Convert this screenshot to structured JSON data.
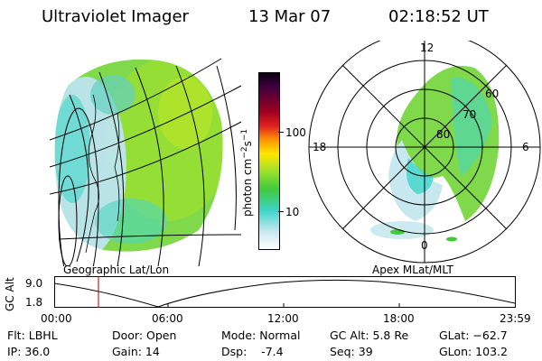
{
  "header": {
    "title": "Ultraviolet Imager",
    "date": "13 Mar 07",
    "time": "02:18:52 UT"
  },
  "left_panel": {
    "label": "Geographic Lat/Lon"
  },
  "colorbar": {
    "unit_text": "photon cm",
    "unit_exp1": "−2",
    "unit_s": "s",
    "unit_exp2": "−1",
    "ticks": [
      "100",
      "10"
    ],
    "colors": [
      "#ffffff",
      "#c8e8f0",
      "#3dd4c8",
      "#3fca3c",
      "#9be02c",
      "#ffe600",
      "#ff9600",
      "#e02020",
      "#a00020",
      "#400040",
      "#0a0010"
    ]
  },
  "right_panel": {
    "label": "Apex MLat/MLT",
    "mlt_labels": [
      "12",
      "18",
      "6",
      "0"
    ],
    "lat_labels": [
      "60",
      "70",
      "80"
    ]
  },
  "gc_plot": {
    "ylabel": "GC Alt",
    "ymax_label": "9.0",
    "ymin_label": "1.8",
    "xticks": [
      "00:00",
      "06:00",
      "12:00",
      "18:00",
      "23:59"
    ]
  },
  "footer": {
    "filter": "Flt: LBHL",
    "ip": "IP: 36.0",
    "door": "Door: Open",
    "gain": "Gain: 14",
    "mode": "Mode: Normal",
    "dsp": "Dsp:    -7.4",
    "gc_alt": "GC Alt: 5.8 Re",
    "seq": "Seq: 39",
    "glat": "GLat: −62.7",
    "glon": "GLon: 103.2"
  }
}
